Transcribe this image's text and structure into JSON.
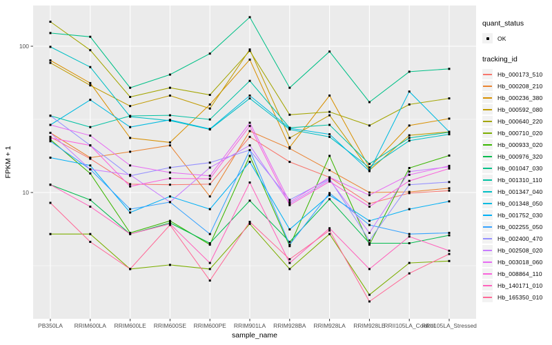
{
  "chart_data": {
    "type": "line",
    "title": "",
    "xlabel": "sample_name",
    "ylabel": "FPKM + 1",
    "y_scale": "log10",
    "ylim": [
      1.6,
      190
    ],
    "y_ticks": [
      100,
      10
    ],
    "y_minor_ticks": [
      31.62,
      3.162
    ],
    "grid": true,
    "panel_bg": "#EBEBEB",
    "gridline_color": "#FFFFFF",
    "marker": "black-square",
    "categories": [
      "PB350LA",
      "RRIM600LA",
      "RRIM600LE",
      "RRIM600SE",
      "RRIM600PE",
      "RRIM901LA",
      "RRIM928BA",
      "RRIM928LA",
      "RRIM928LE",
      "RRII105LA_Control",
      "RRII105LA_Stressed"
    ],
    "series": [
      {
        "name": "Hb_000173_510",
        "color": "#F8766D",
        "values": [
          24,
          17,
          11.4,
          11.3,
          11.4,
          24,
          16.2,
          12.7,
          8.4,
          9.9,
          10.3
        ]
      },
      {
        "name": "Hb_000208_210",
        "color": "#EA8331",
        "values": [
          25.6,
          17.3,
          19,
          21,
          9.4,
          26.3,
          20,
          14.2,
          10,
          10.1,
          10.7
        ]
      },
      {
        "name": "Hb_000236_380",
        "color": "#D89000",
        "values": [
          80,
          56,
          23.6,
          22,
          40,
          81,
          20.4,
          46,
          14.8,
          28.7,
          32
        ]
      },
      {
        "name": "Hb_000592_080",
        "color": "#C09B00",
        "values": [
          77,
          54,
          39,
          46,
          37.5,
          95,
          23.6,
          33.7,
          14.2,
          24.6,
          26
        ]
      },
      {
        "name": "Hb_000640_220",
        "color": "#A3A500",
        "values": [
          147,
          94,
          45,
          52,
          46.5,
          93,
          34,
          35.6,
          28.7,
          40,
          44
        ]
      },
      {
        "name": "Hb_000710_020",
        "color": "#7CAE00",
        "values": [
          5.2,
          5.2,
          3.0,
          3.2,
          3.0,
          6.1,
          3.0,
          5.2,
          2.0,
          3.3,
          3.4
        ]
      },
      {
        "name": "Hb_000933_020",
        "color": "#39B600",
        "values": [
          23,
          13.5,
          5.3,
          6.4,
          4.4,
          17.8,
          4.3,
          17.8,
          4.4,
          14.7,
          17.9
        ]
      },
      {
        "name": "Hb_000976_320",
        "color": "#00BB4E",
        "values": [
          11.3,
          8.9,
          5.2,
          6.2,
          4.5,
          8.8,
          4.6,
          9.0,
          4.5,
          4.5,
          5.1
        ]
      },
      {
        "name": "Hb_001047_030",
        "color": "#00C087",
        "values": [
          123,
          116,
          52,
          64,
          89,
          158,
          52,
          92,
          41.5,
          67,
          70
        ]
      },
      {
        "name": "Hb_001310_110",
        "color": "#00C1A3",
        "values": [
          33.5,
          28,
          33.4,
          33.7,
          31.6,
          58,
          27.7,
          29,
          15.7,
          23.6,
          25.8
        ]
      },
      {
        "name": "Hb_001347_040",
        "color": "#00BFC4",
        "values": [
          99,
          72,
          33,
          31,
          27,
          44,
          27,
          24,
          14.8,
          22.6,
          25
        ]
      },
      {
        "name": "Hb_001348_050",
        "color": "#00BAE0",
        "values": [
          29,
          43,
          28,
          31.4,
          27.2,
          46,
          27.5,
          25,
          14,
          49,
          26
        ]
      },
      {
        "name": "Hb_001752_030",
        "color": "#00B0F6",
        "values": [
          17.3,
          15.3,
          7.3,
          9.4,
          7.7,
          16.2,
          5.6,
          9.6,
          6.4,
          7.7,
          8.7
        ]
      },
      {
        "name": "Hb_002255_050",
        "color": "#35A2FF",
        "values": [
          22.4,
          14.4,
          7.7,
          8.6,
          5.2,
          19.5,
          4.4,
          9.9,
          6.0,
          5.2,
          5.3
        ]
      },
      {
        "name": "Hb_002400_470",
        "color": "#9590FF",
        "values": [
          33.5,
          21,
          13,
          14.8,
          16,
          19.5,
          8.9,
          12.4,
          4.7,
          11.3,
          11.8
        ]
      },
      {
        "name": "Hb_002508_020",
        "color": "#C77CFF",
        "values": [
          25.6,
          14.4,
          13.2,
          8.6,
          14.8,
          21,
          8.4,
          12.2,
          5.3,
          13.9,
          15
        ]
      },
      {
        "name": "Hb_003018_060",
        "color": "#E76BF3",
        "values": [
          29,
          24.5,
          15.3,
          13.7,
          13,
          30,
          8.6,
          12.7,
          9.6,
          13.2,
          15.2
        ]
      },
      {
        "name": "Hb_008864_110",
        "color": "#FA62DB",
        "values": [
          23.6,
          21,
          11,
          12.5,
          12.4,
          28.5,
          8.2,
          11.9,
          8.0,
          12,
          14.6
        ]
      },
      {
        "name": "Hb_140171_010",
        "color": "#FF62BC",
        "values": [
          11.3,
          8.0,
          5.2,
          6.1,
          3.3,
          11.7,
          3.3,
          5.7,
          3.0,
          5.0,
          4.0
        ]
      },
      {
        "name": "Hb_165350_010",
        "color": "#FF6A98",
        "values": [
          8.5,
          4.6,
          3.0,
          6.0,
          2.5,
          6.3,
          3.5,
          5.5,
          1.8,
          2.8,
          3.8
        ]
      }
    ],
    "legend": {
      "position": "right",
      "quant_status_title": "quant_status",
      "ok_label": "OK",
      "tracking_title": "tracking_id"
    }
  }
}
